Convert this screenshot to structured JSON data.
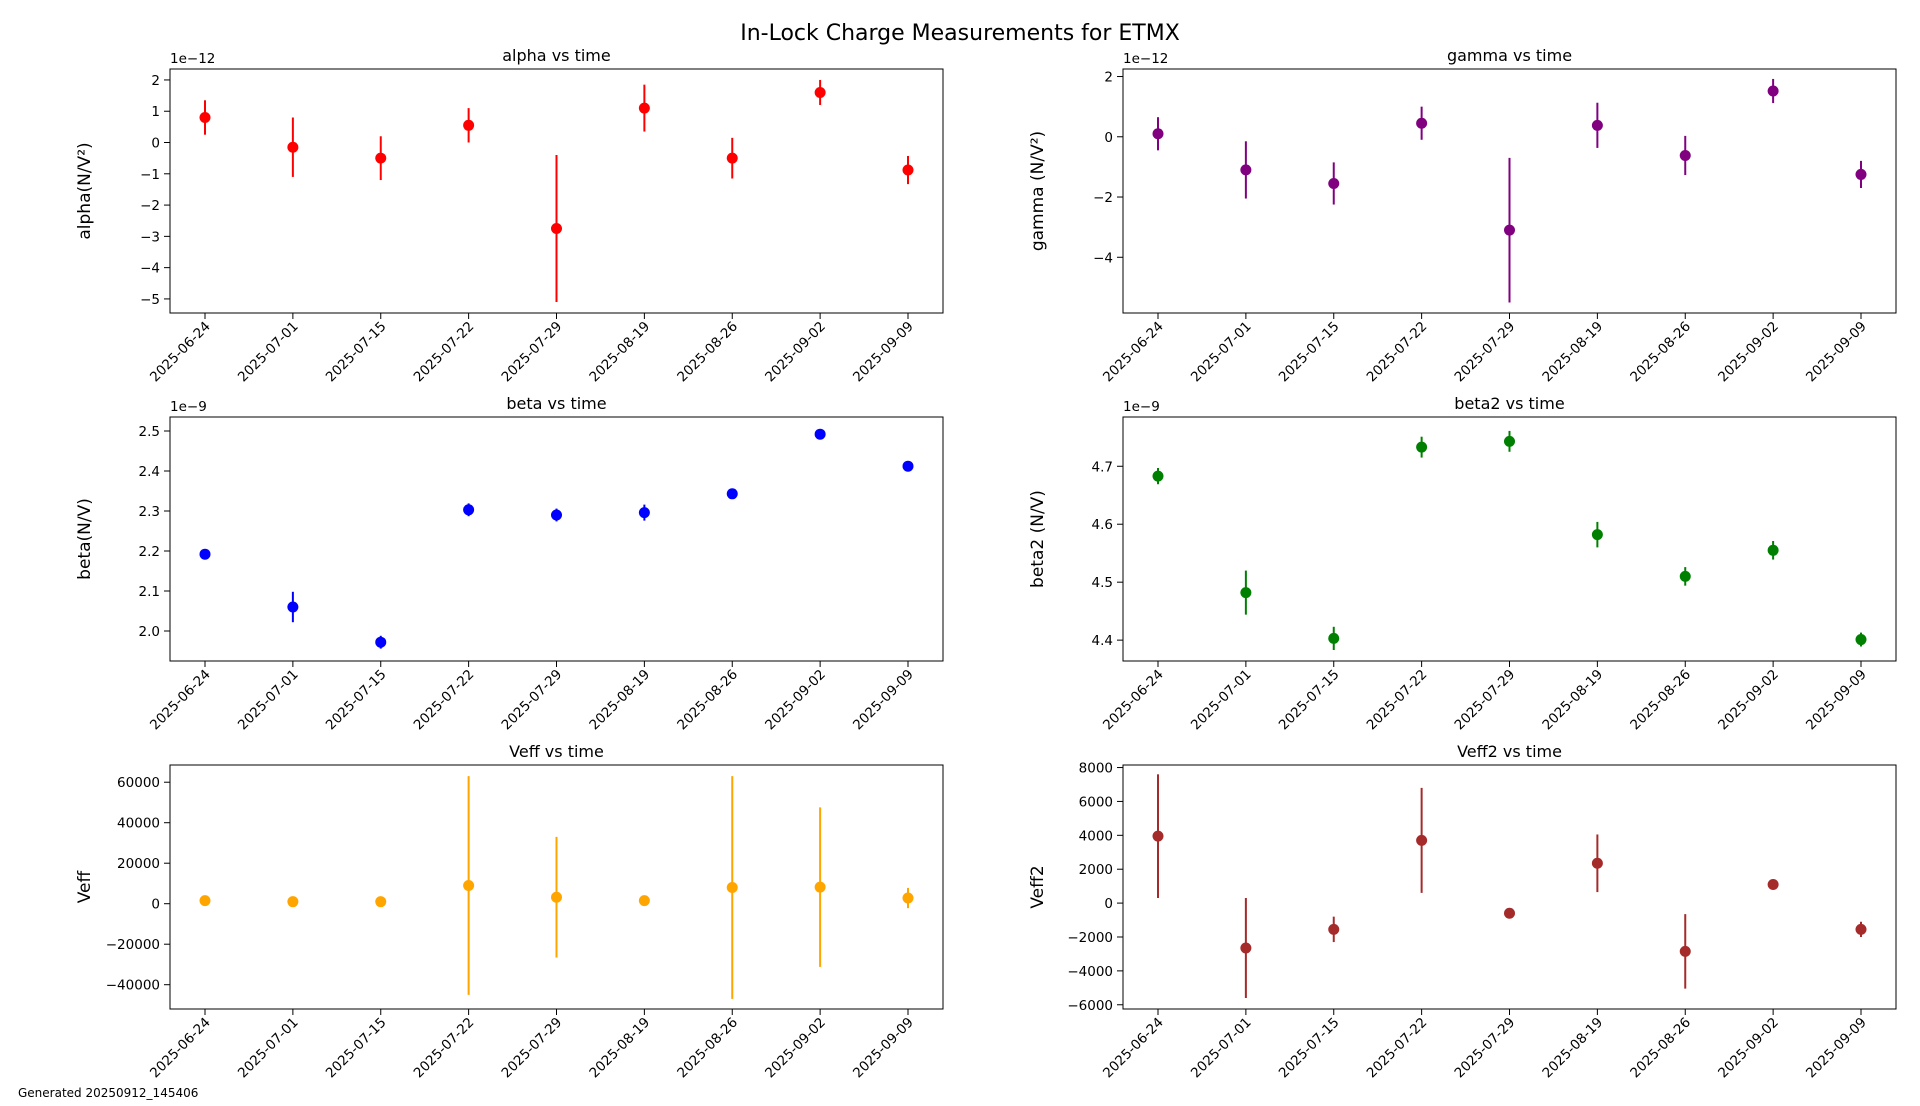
{
  "suptitle": "In-Lock Charge Measurements for ETMX",
  "footer": "Generated 20250912_145406",
  "dates": [
    "2025-06-24",
    "2025-07-01",
    "2025-07-15",
    "2025-07-22",
    "2025-07-29",
    "2025-08-19",
    "2025-08-26",
    "2025-09-02",
    "2025-09-09"
  ],
  "chart_data": [
    {
      "type": "scatter",
      "title": "alpha vs time",
      "ylabel": "alpha(N/V²)",
      "multiplier": "1e−12",
      "color": "#ff0000",
      "x": [
        "2025-06-24",
        "2025-07-01",
        "2025-07-15",
        "2025-07-22",
        "2025-07-29",
        "2025-08-19",
        "2025-08-26",
        "2025-09-02",
        "2025-09-09"
      ],
      "y": [
        0.8,
        -0.15,
        -0.5,
        0.55,
        -2.75,
        1.1,
        -0.5,
        1.6,
        -0.88
      ],
      "yerr": [
        0.55,
        0.95,
        0.7,
        0.55,
        2.35,
        0.75,
        0.65,
        0.4,
        0.45
      ],
      "ylim": [
        -5.45,
        2.35
      ],
      "yticks": [
        -5,
        -4,
        -3,
        -2,
        -1,
        0,
        1,
        2
      ],
      "ytick_labels": [
        "−5",
        "−4",
        "−3",
        "−2",
        "−1",
        "0",
        "1",
        "2"
      ],
      "grid": false
    },
    {
      "type": "scatter",
      "title": "gamma vs time",
      "ylabel": "gamma (N/V²)",
      "multiplier": "1e−12",
      "color": "#800080",
      "x": [
        "2025-06-24",
        "2025-07-01",
        "2025-07-15",
        "2025-07-22",
        "2025-07-29",
        "2025-08-19",
        "2025-08-26",
        "2025-09-02",
        "2025-09-09"
      ],
      "y": [
        0.1,
        -1.1,
        -1.55,
        0.45,
        -3.1,
        0.38,
        -0.62,
        1.52,
        -1.25
      ],
      "yerr": [
        0.55,
        0.95,
        0.7,
        0.55,
        2.4,
        0.75,
        0.65,
        0.4,
        0.45
      ],
      "ylim": [
        -5.85,
        2.25
      ],
      "yticks": [
        -4,
        -2,
        0,
        2
      ],
      "ytick_labels": [
        "−4",
        "−2",
        "0",
        "2"
      ],
      "grid": false
    },
    {
      "type": "scatter",
      "title": "beta vs time",
      "ylabel": "beta(N/V)",
      "multiplier": "1e−9",
      "color": "#0000ff",
      "x": [
        "2025-06-24",
        "2025-07-01",
        "2025-07-15",
        "2025-07-22",
        "2025-07-29",
        "2025-08-19",
        "2025-08-26",
        "2025-09-02",
        "2025-09-09"
      ],
      "y": [
        2.192,
        2.06,
        1.972,
        2.303,
        2.29,
        2.296,
        2.343,
        2.492,
        2.412
      ],
      "yerr": [
        0.012,
        0.038,
        0.016,
        0.016,
        0.016,
        0.02,
        0.012,
        0.012,
        0.01
      ],
      "ylim": [
        1.925,
        2.535
      ],
      "yticks": [
        2.0,
        2.1,
        2.2,
        2.3,
        2.4,
        2.5
      ],
      "ytick_labels": [
        "2.0",
        "2.1",
        "2.2",
        "2.3",
        "2.4",
        "2.5"
      ],
      "grid": false
    },
    {
      "type": "scatter",
      "title": "beta2 vs time",
      "ylabel": "beta2 (N/V)",
      "multiplier": "1e−9",
      "color": "#008000",
      "x": [
        "2025-06-24",
        "2025-07-01",
        "2025-07-15",
        "2025-07-22",
        "2025-07-29",
        "2025-08-19",
        "2025-08-26",
        "2025-09-02",
        "2025-09-09"
      ],
      "y": [
        4.683,
        4.482,
        4.403,
        4.733,
        4.743,
        4.582,
        4.51,
        4.555,
        4.401
      ],
      "yerr": [
        0.014,
        0.038,
        0.02,
        0.018,
        0.018,
        0.022,
        0.016,
        0.016,
        0.012
      ],
      "ylim": [
        4.364,
        4.785
      ],
      "yticks": [
        4.4,
        4.5,
        4.6,
        4.7
      ],
      "ytick_labels": [
        "4.4",
        "4.5",
        "4.6",
        "4.7"
      ],
      "grid": false
    },
    {
      "type": "scatter",
      "title": "Veff vs time",
      "ylabel": "Veff",
      "multiplier": "",
      "color": "#ffa500",
      "x": [
        "2025-06-24",
        "2025-07-01",
        "2025-07-15",
        "2025-07-22",
        "2025-07-29",
        "2025-08-19",
        "2025-08-26",
        "2025-09-02",
        "2025-09-09"
      ],
      "y": [
        1500,
        1000,
        1000,
        9000,
        3200,
        1500,
        8000,
        8200,
        2800
      ],
      "yerr": [
        800,
        600,
        600,
        54000,
        29800,
        700,
        55000,
        39400,
        5000
      ],
      "ylim": [
        -52000,
        68500
      ],
      "yticks": [
        -40000,
        -20000,
        0,
        20000,
        40000,
        60000
      ],
      "ytick_labels": [
        "−40000",
        "−20000",
        "0",
        "20000",
        "40000",
        "60000"
      ],
      "grid": false
    },
    {
      "type": "scatter",
      "title": "Veff2 vs time",
      "ylabel": "Veff2",
      "multiplier": "",
      "color": "#a52a2a",
      "x": [
        "2025-06-24",
        "2025-07-01",
        "2025-07-15",
        "2025-07-22",
        "2025-07-29",
        "2025-08-19",
        "2025-08-26",
        "2025-09-02",
        "2025-09-09"
      ],
      "y": [
        3950,
        -2650,
        -1550,
        3700,
        -600,
        2350,
        -2850,
        1100,
        -1550
      ],
      "yerr": [
        3650,
        2950,
        750,
        3100,
        200,
        1700,
        2200,
        100,
        450
      ],
      "ylim": [
        -6250,
        8150
      ],
      "yticks": [
        -6000,
        -4000,
        -2000,
        0,
        2000,
        4000,
        6000,
        8000
      ],
      "ytick_labels": [
        "−6000",
        "−4000",
        "−2000",
        "0",
        "2000",
        "4000",
        "6000",
        "8000"
      ],
      "grid": false
    }
  ]
}
